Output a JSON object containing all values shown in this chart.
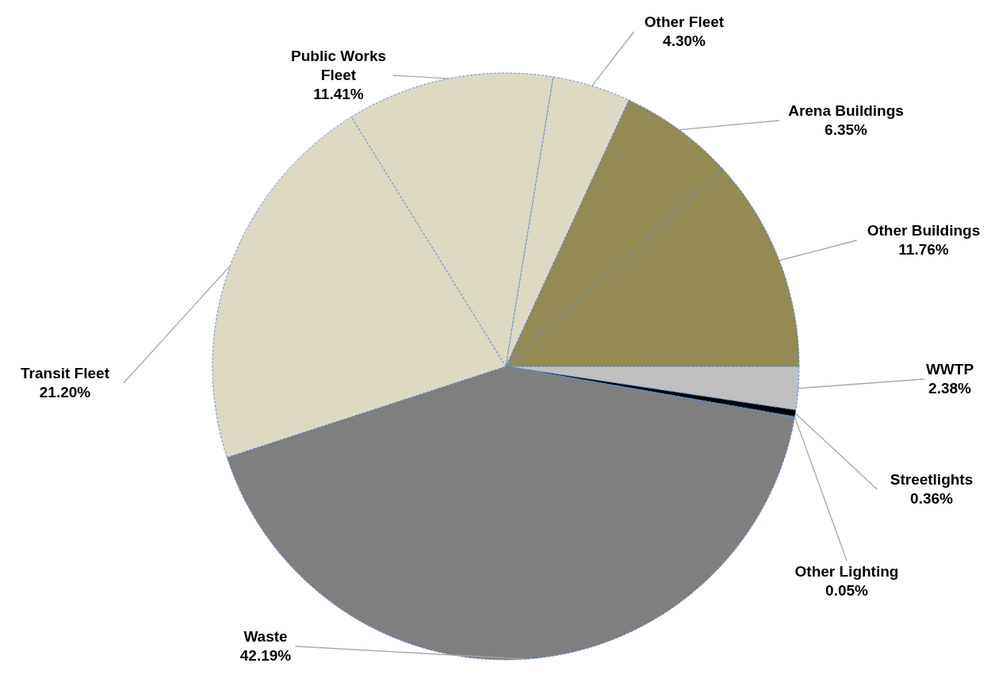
{
  "chart_data": {
    "type": "pie",
    "categories": [
      "WWTP",
      "Streetlights",
      "Other Lighting",
      "Waste",
      "Transit Fleet",
      "Public Works Fleet",
      "Other Fleet",
      "Arena Buildings",
      "Other Buildings"
    ],
    "values": [
      2.38,
      0.36,
      0.05,
      42.19,
      21.2,
      11.41,
      4.3,
      6.35,
      11.76
    ],
    "colors": [
      "#bfbfbf",
      "#000000",
      "#4f6228",
      "#7f7f7f",
      "#ddd9c3",
      "#ddd9c3",
      "#ddd9c3",
      "#948a54",
      "#948a54"
    ],
    "value_labels": [
      "2.38%",
      "0.36%",
      "0.05%",
      "42.19%",
      "21.20%",
      "11.41%",
      "4.30%",
      "6.35%",
      "11.76%"
    ],
    "legend": false
  }
}
